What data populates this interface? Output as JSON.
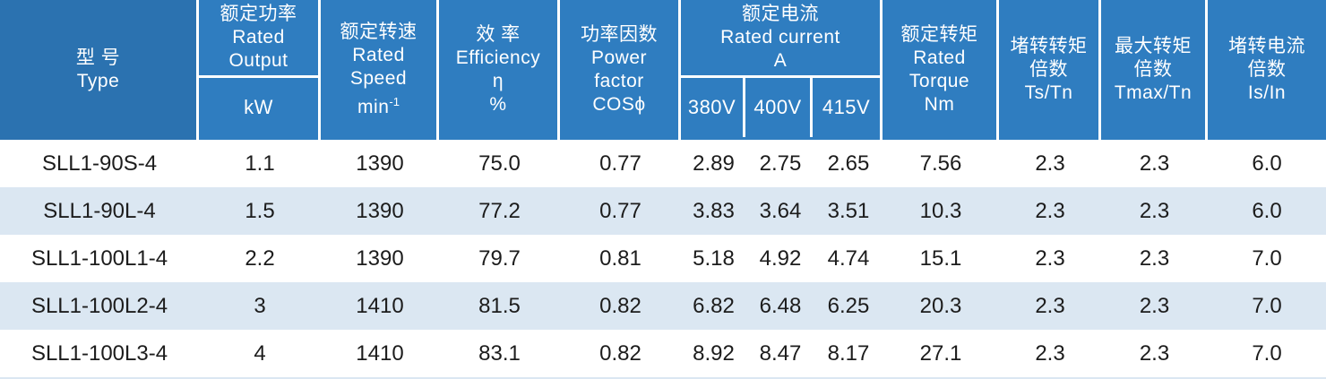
{
  "table": {
    "columns": {
      "type": {
        "zh": "型 号",
        "en": "Type"
      },
      "rated_output": {
        "zh": "额定功率",
        "en_line1": "Rated",
        "en_line2": "Output",
        "unit": "kW"
      },
      "rated_speed": {
        "zh": "额定转速",
        "en_line1": "Rated",
        "en_line2": "Speed",
        "unit_base": "min",
        "unit_sup": "-1"
      },
      "efficiency": {
        "zh": "效 率",
        "en": "Efficiency",
        "symbol": "η",
        "unit": "%"
      },
      "power_factor": {
        "zh": "功率因数",
        "en_line1": "Power",
        "en_line2": "factor",
        "symbol": "COSϕ"
      },
      "rated_current": {
        "zh": "额定电流",
        "en": "Rated current",
        "unit": "A",
        "sub_380": "380V",
        "sub_400": "400V",
        "sub_415": "415V"
      },
      "rated_torque": {
        "zh": "额定转矩",
        "en_line1": "Rated",
        "en_line2": "Torque",
        "unit": "Nm"
      },
      "locked_rotor_torque": {
        "zh_line1": "堵转转矩",
        "zh_line2": "倍数",
        "ratio": "Ts/Tn"
      },
      "max_torque": {
        "zh_line1": "最大转矩",
        "zh_line2": "倍数",
        "ratio": "Tmax/Tn"
      },
      "locked_rotor_current": {
        "zh_line1": "堵转电流",
        "zh_line2": "倍数",
        "ratio": "Is/In"
      }
    },
    "rows": [
      {
        "cells": [
          "SLL1-90S-4",
          "1.1",
          "1390",
          "75.0",
          "0.77",
          "2.89",
          "2.75",
          "2.65",
          "7.56",
          "2.3",
          "2.3",
          "6.0"
        ]
      },
      {
        "cells": [
          "SLL1-90L-4",
          "1.5",
          "1390",
          "77.2",
          "0.77",
          "3.83",
          "3.64",
          "3.51",
          "10.3",
          "2.3",
          "2.3",
          "6.0"
        ]
      },
      {
        "cells": [
          "SLL1-100L1-4",
          "2.2",
          "1390",
          "79.7",
          "0.81",
          "5.18",
          "4.92",
          "4.74",
          "15.1",
          "2.3",
          "2.3",
          "7.0"
        ]
      },
      {
        "cells": [
          "SLL1-100L2-4",
          "3",
          "1410",
          "81.5",
          "0.82",
          "6.82",
          "6.48",
          "6.25",
          "20.3",
          "2.3",
          "2.3",
          "7.0"
        ]
      },
      {
        "cells": [
          "SLL1-100L3-4",
          "4",
          "1410",
          "83.1",
          "0.82",
          "8.92",
          "8.47",
          "8.17",
          "27.1",
          "2.3",
          "2.3",
          "7.0"
        ]
      }
    ]
  },
  "colors": {
    "header_blue": "#2f7dc0",
    "header_blue_dark": "#2b72b0",
    "row_stripe": "#dbe7f2",
    "row_white": "#ffffff",
    "header_text": "#ffffff",
    "data_text": "#1c1c1c",
    "divider": "#ffffff"
  }
}
